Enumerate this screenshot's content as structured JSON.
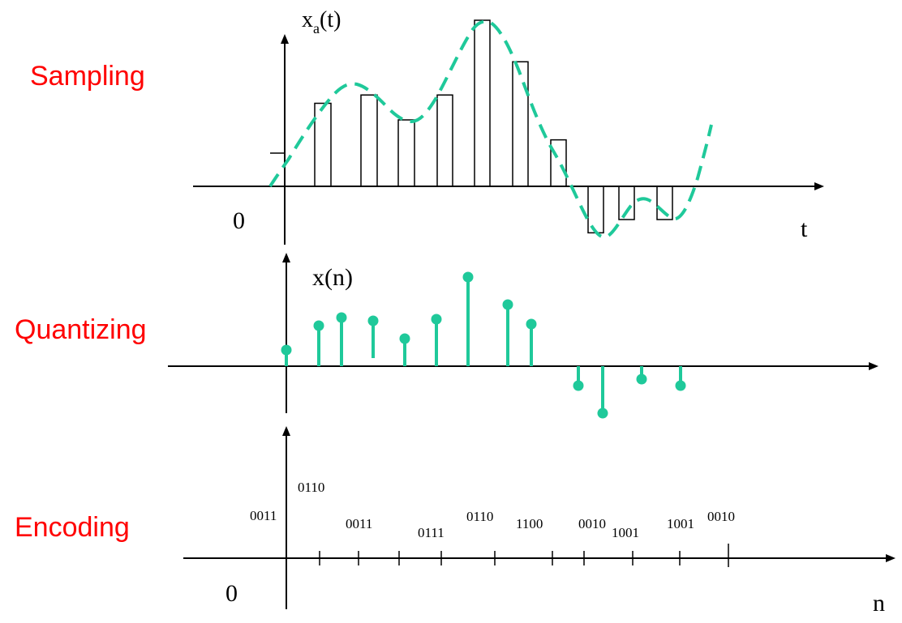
{
  "colors": {
    "label": "#ff0000",
    "signal": "#1fc99a",
    "axis": "#000000"
  },
  "sections": {
    "sampling": "Sampling",
    "quantizing": "Quantizing",
    "encoding": "Encoding"
  },
  "sampling": {
    "ylabel_main": "x",
    "ylabel_sub": "a",
    "ylabel_arg": "(t)",
    "origin": "0",
    "xlabel": "t"
  },
  "quantizing": {
    "ylabel": "x(n)"
  },
  "encoding": {
    "origin": "0",
    "xlabel": "n",
    "codes": [
      "0011",
      "0110",
      "0011",
      "0111",
      "0110",
      "1100",
      "0010",
      "1001",
      "1001",
      "0010"
    ]
  },
  "chart_data": [
    {
      "type": "bar",
      "description_axis": "sampled analog signal x_a(t) with sample-and-hold rectangles",
      "xlabel": "t",
      "ylabel": "xa(t)",
      "values": [
        2,
        5,
        5.5,
        4,
        5.5,
        10,
        7.5,
        2.8,
        -2.8,
        -2,
        -2
      ]
    },
    {
      "type": "scatter",
      "xlabel": "n",
      "ylabel": "x(n)",
      "values": [
        1,
        2.5,
        3,
        2.8,
        1.7,
        2.9,
        5.5,
        3.8,
        2.6,
        -1.2,
        -2.9,
        -0.8,
        -1.2
      ]
    }
  ]
}
